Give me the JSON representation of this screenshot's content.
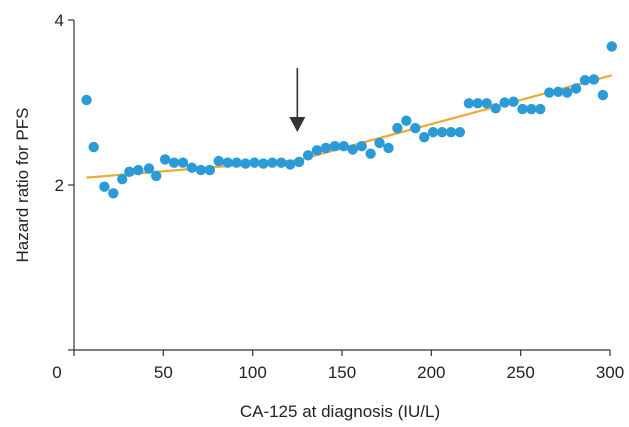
{
  "chart_data": {
    "type": "scatter",
    "xlabel": "CA-125 at diagnosis (IU/L)",
    "ylabel": "Hazard ratio for PFS",
    "xlim": [
      0,
      300
    ],
    "ylim": [
      0,
      4
    ],
    "x_ticks": [
      0,
      50,
      100,
      150,
      200,
      250,
      300
    ],
    "y_ticks": [
      2,
      4
    ],
    "grid": false,
    "point_color": "#2a9bd6",
    "line_color": "#f0a830",
    "arrow_color": "#333333",
    "arrow_at_x": 125,
    "series": [
      {
        "kind": "points",
        "x": [
          7,
          11,
          17,
          22,
          27,
          31,
          36,
          42,
          46,
          51,
          56,
          61,
          66,
          71,
          76,
          81,
          86,
          91,
          96,
          101,
          106,
          111,
          116,
          121,
          126,
          131,
          136,
          141,
          146,
          151,
          156,
          161,
          166,
          171,
          176,
          181,
          186,
          191,
          196,
          201,
          206,
          211,
          216,
          221,
          226,
          231,
          236,
          241,
          246,
          251,
          256,
          261,
          266,
          271,
          276,
          281,
          286,
          291,
          296,
          301
        ],
        "y": [
          3.03,
          2.46,
          1.98,
          1.9,
          2.07,
          2.16,
          2.18,
          2.2,
          2.11,
          2.31,
          2.27,
          2.27,
          2.21,
          2.18,
          2.18,
          2.29,
          2.27,
          2.27,
          2.26,
          2.27,
          2.26,
          2.27,
          2.27,
          2.25,
          2.28,
          2.36,
          2.42,
          2.45,
          2.47,
          2.47,
          2.43,
          2.47,
          2.38,
          2.51,
          2.45,
          2.69,
          2.78,
          2.69,
          2.58,
          2.64,
          2.64,
          2.64,
          2.64,
          2.99,
          2.99,
          2.99,
          2.93,
          3.0,
          3.01,
          2.92,
          2.92,
          2.92,
          3.12,
          3.13,
          3.12,
          3.17,
          3.27,
          3.28,
          3.09,
          3.68
        ]
      },
      {
        "kind": "line",
        "x": [
          7,
          125,
          301
        ],
        "y": [
          2.09,
          2.3,
          3.33
        ]
      }
    ]
  }
}
